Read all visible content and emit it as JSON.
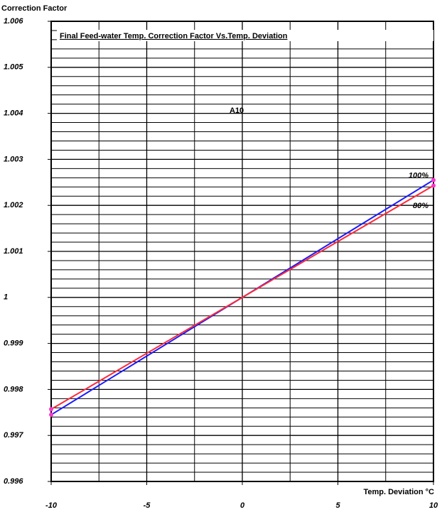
{
  "chart_data": {
    "type": "line",
    "title": "Final Feed-water Temp. Correction Factor Vs.Temp. Deviation",
    "annotation": "A10",
    "y_label": "Correction Factor",
    "x_label": "Temp. Deviation °C",
    "x": [
      -10,
      0,
      10
    ],
    "series": [
      {
        "name": "100%",
        "color": "#1a1aff",
        "values": [
          0.99745,
          1.0,
          1.00255
        ]
      },
      {
        "name": "80%",
        "color": "#ff2a3a",
        "values": [
          0.99757,
          1.0,
          1.00243
        ]
      }
    ],
    "xlim": [
      -10,
      10
    ],
    "xticks": [
      -10,
      -5,
      0,
      5,
      10
    ],
    "ylim": [
      0.996,
      1.006
    ],
    "yticks": [
      0.996,
      0.997,
      0.998,
      0.999,
      1,
      1.001,
      1.002,
      1.003,
      1.004,
      1.005,
      1.006
    ],
    "grid": true
  }
}
